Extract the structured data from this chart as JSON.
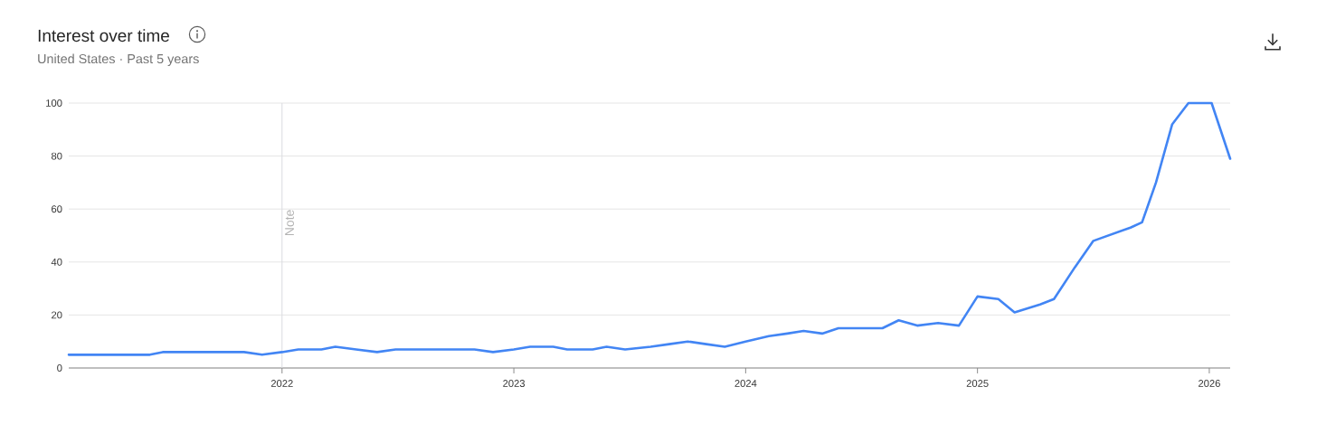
{
  "chart_data": {
    "type": "line",
    "title": "Interest over time",
    "subtitle": "United States · Past 5 years",
    "x": [
      2021.08,
      2021.43,
      2021.485,
      2021.836,
      2021.914,
      2022.0,
      2022.07,
      2022.17,
      2022.23,
      2022.32,
      2022.41,
      2022.49,
      2022.83,
      2022.91,
      2023.0,
      2023.07,
      2023.17,
      2023.23,
      2023.34,
      2023.4,
      2023.48,
      2023.59,
      2023.67,
      2023.75,
      2023.83,
      2023.91,
      2024.0,
      2024.1,
      2024.18,
      2024.25,
      2024.33,
      2024.4,
      2024.59,
      2024.66,
      2024.74,
      2024.83,
      2024.92,
      2025.0,
      2025.09,
      2025.16,
      2025.27,
      2025.33,
      2025.42,
      2025.5,
      2025.66,
      2025.71,
      2025.77,
      2025.84,
      2025.91,
      2026.01,
      2026.09
    ],
    "values": [
      5,
      5,
      6,
      6,
      5,
      6,
      7,
      7,
      8,
      7,
      6,
      7,
      7,
      6,
      7,
      8,
      8,
      7,
      7,
      8,
      7,
      8,
      9,
      10,
      9,
      8,
      10,
      12,
      13,
      14,
      13,
      15,
      15,
      18,
      16,
      17,
      16,
      27,
      26,
      21,
      24,
      26,
      38,
      48,
      53,
      55,
      70,
      92,
      100,
      100,
      79
    ],
    "color": "#4285f4",
    "line_style": "solid",
    "xlim": [
      2021.08,
      2026.09
    ],
    "ylim": [
      0,
      100
    ],
    "xticks": [
      2022,
      2023,
      2024,
      2025,
      2026
    ],
    "yticks": [
      0,
      20,
      40,
      60,
      80,
      100
    ],
    "grid": "y",
    "ref_lines": [
      {
        "axis": "x",
        "value": 2022,
        "label": "Note",
        "color": "#dadce0"
      }
    ]
  }
}
